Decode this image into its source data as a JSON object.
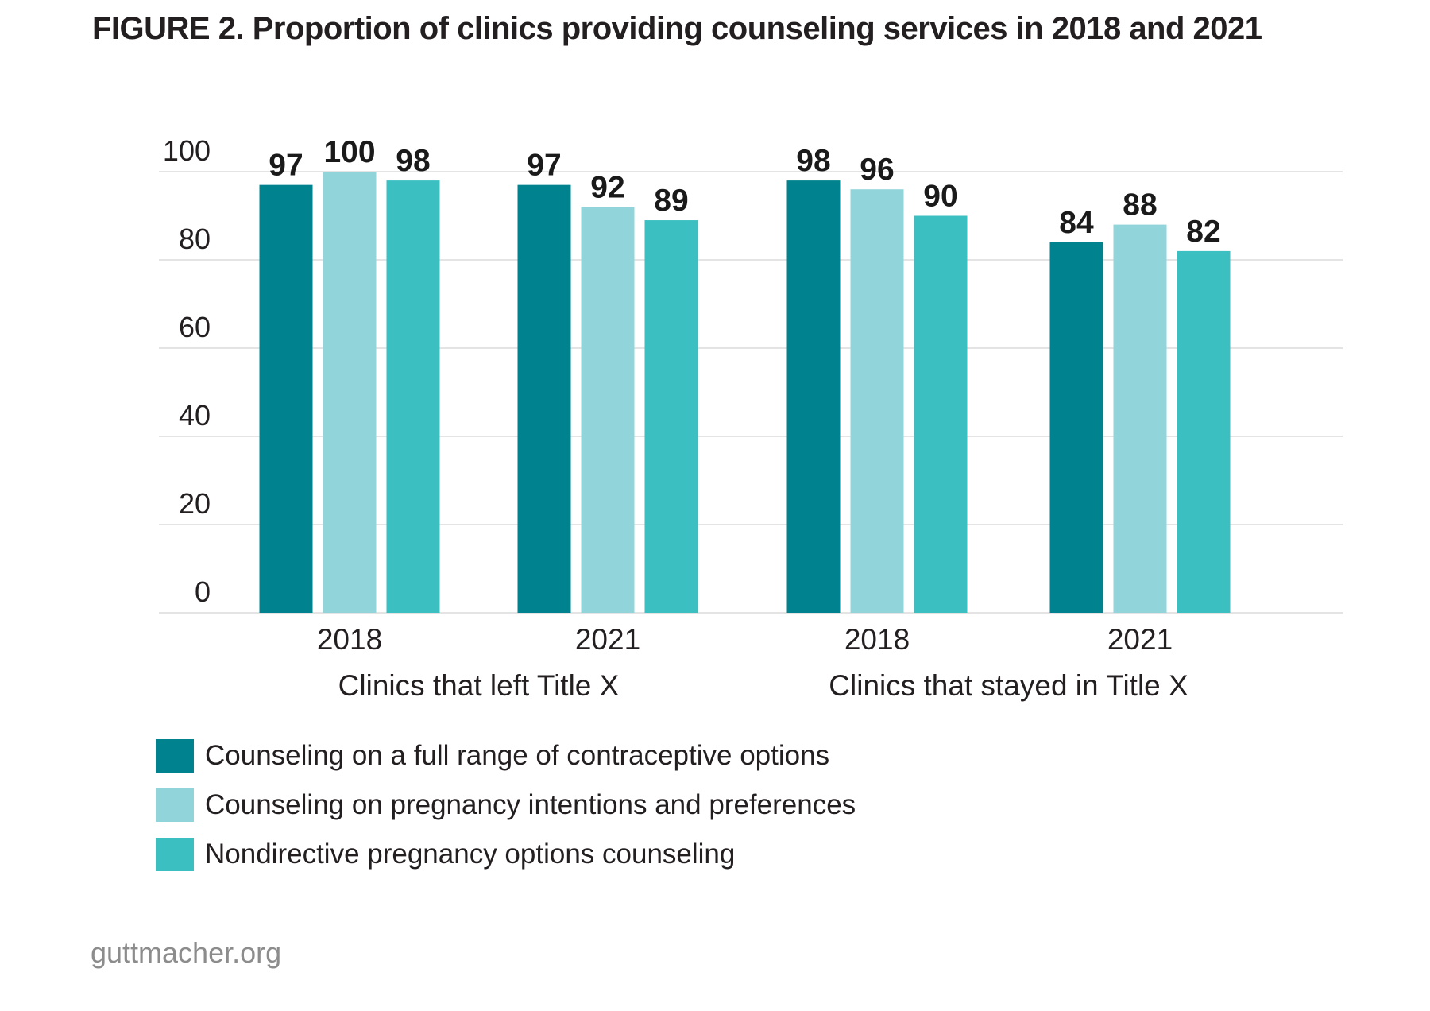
{
  "title": "FIGURE 2. Proportion of clinics providing counseling services in 2018 and 2021",
  "footer": "guttmacher.org",
  "chart_data": {
    "type": "bar",
    "categories": [
      "2018",
      "2021",
      "2018",
      "2021"
    ],
    "groups": [
      {
        "label": "Clinics that left Title X",
        "categories": [
          "2018",
          "2021"
        ]
      },
      {
        "label": "Clinics that stayed in Title X",
        "categories": [
          "2018",
          "2021"
        ]
      }
    ],
    "series": [
      {
        "name": "Counseling on a full range of contraceptive options",
        "color": "#00838f",
        "values": [
          97,
          97,
          98,
          84
        ]
      },
      {
        "name": "Counseling on pregnancy intentions and preferences",
        "color": "#91d5da",
        "values": [
          100,
          92,
          96,
          88
        ]
      },
      {
        "name": "Nondirective pregnancy options counseling",
        "color": "#3bbfc1",
        "values": [
          98,
          89,
          90,
          82
        ]
      }
    ],
    "yticks": [
      0,
      20,
      40,
      60,
      80,
      100
    ],
    "ylim": [
      0,
      100
    ],
    "grid": true,
    "legend_position": "bottom-left",
    "data_labels": true
  }
}
